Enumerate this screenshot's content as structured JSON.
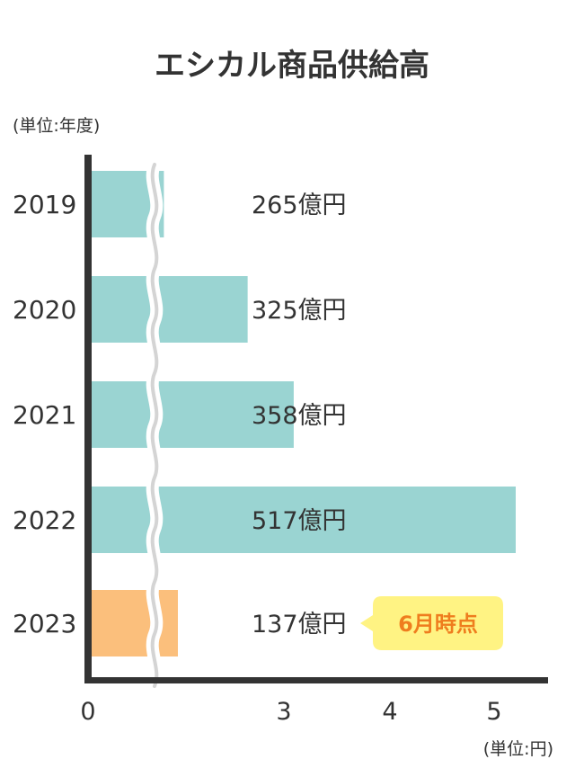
{
  "chart_data": {
    "type": "bar",
    "orientation": "horizontal",
    "title": "エシカル商品供給高",
    "category_unit": "(単位:年度)",
    "value_unit": "(単位:円)",
    "categories": [
      "2019",
      "2020",
      "2021",
      "2022",
      "2023"
    ],
    "values": [
      265,
      325,
      358,
      517,
      137
    ],
    "value_labels": [
      "265億円",
      "325億円",
      "358億円",
      "517億円",
      "137億円"
    ],
    "x_tick_labels": [
      "0",
      "3",
      "4",
      "5"
    ],
    "axis_break": true,
    "colors": {
      "bar": "#9ad4d2",
      "highlight_bar": "#fbbf7c",
      "axis": "#333333",
      "break_line": "#d4d4d4",
      "badge_bg": "#fff383",
      "badge_text": "#ef7d1e"
    },
    "highlight_index": 4,
    "annotation": {
      "index": 4,
      "text": "6月時点"
    }
  }
}
